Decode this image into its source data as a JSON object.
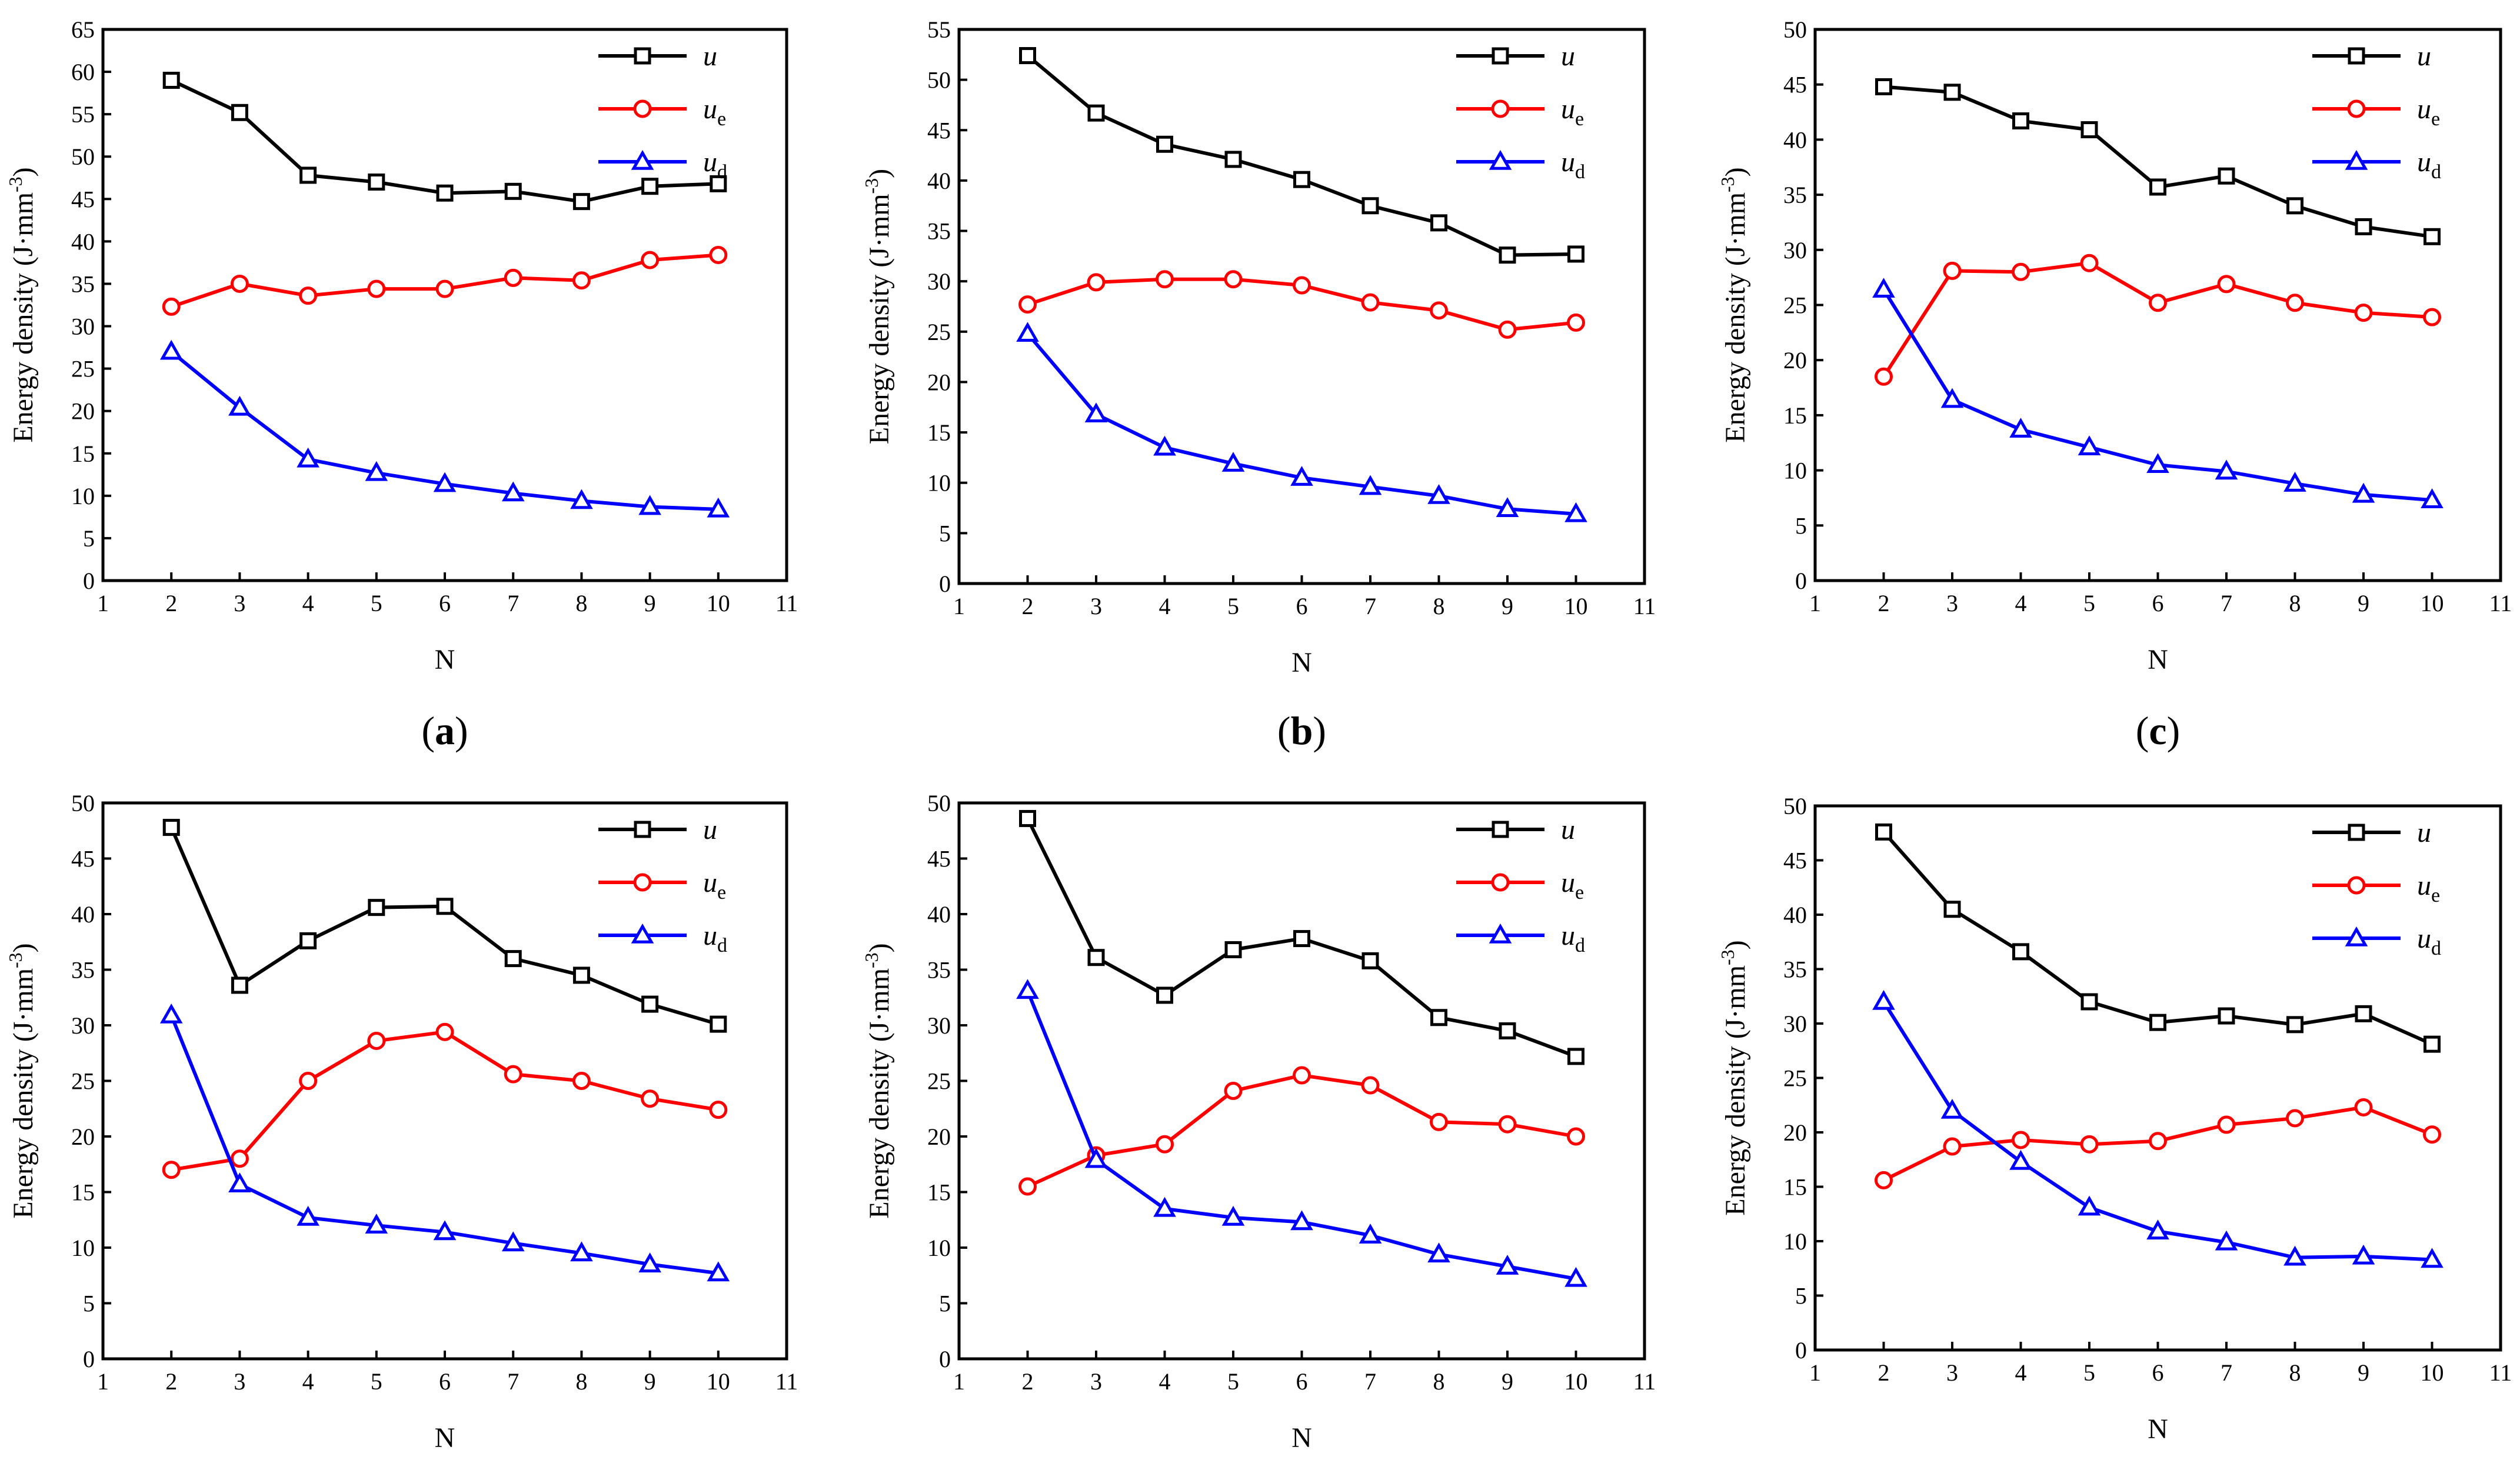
{
  "chart_data": [
    {
      "type": "line",
      "panel_label": "(a)",
      "xlabel": "N",
      "ylabel": "Energy density (J·mm",
      "ylabel_exp": "-3",
      "ylabel_close": ")",
      "xlim": [
        1,
        11
      ],
      "ylim": [
        0,
        65
      ],
      "xticks": [
        1,
        2,
        3,
        4,
        5,
        6,
        7,
        8,
        9,
        10,
        11
      ],
      "yticks": [
        0,
        5,
        10,
        15,
        20,
        25,
        30,
        35,
        40,
        45,
        50,
        55,
        60,
        65
      ],
      "grid": false,
      "legend_position": "top-right",
      "x": [
        2,
        3,
        4,
        5,
        6,
        7,
        8,
        9,
        10
      ],
      "series": [
        {
          "name": "u",
          "name_sub": "",
          "color": "#000000",
          "marker": "square",
          "values": [
            59.0,
            55.2,
            47.8,
            47.0,
            45.7,
            45.9,
            44.7,
            46.5,
            46.8
          ]
        },
        {
          "name": "u",
          "name_sub": "e",
          "color": "#ff0000",
          "marker": "circle",
          "values": [
            32.3,
            35.0,
            33.6,
            34.4,
            34.4,
            35.7,
            35.4,
            37.8,
            38.4
          ]
        },
        {
          "name": "u",
          "name_sub": "d",
          "color": "#0000ff",
          "marker": "triangle",
          "values": [
            27.0,
            20.4,
            14.3,
            12.7,
            11.4,
            10.3,
            9.4,
            8.7,
            8.4
          ]
        }
      ]
    },
    {
      "type": "line",
      "panel_label": "(b)",
      "xlabel": "N",
      "ylabel": "Energy density (J·mm",
      "ylabel_exp": "-3",
      "ylabel_close": ")",
      "xlim": [
        1,
        11
      ],
      "ylim": [
        0,
        55
      ],
      "xticks": [
        1,
        2,
        3,
        4,
        5,
        6,
        7,
        8,
        9,
        10,
        11
      ],
      "yticks": [
        0,
        5,
        10,
        15,
        20,
        25,
        30,
        35,
        40,
        45,
        50,
        55
      ],
      "grid": false,
      "legend_position": "top-right",
      "x": [
        2,
        3,
        4,
        5,
        6,
        7,
        8,
        9,
        10
      ],
      "series": [
        {
          "name": "u",
          "name_sub": "",
          "color": "#000000",
          "marker": "square",
          "values": [
            52.4,
            46.7,
            43.6,
            42.1,
            40.1,
            37.5,
            35.8,
            32.6,
            32.7
          ]
        },
        {
          "name": "u",
          "name_sub": "e",
          "color": "#ff0000",
          "marker": "circle",
          "values": [
            27.7,
            29.9,
            30.2,
            30.2,
            29.6,
            27.9,
            27.1,
            25.2,
            25.9
          ]
        },
        {
          "name": "u",
          "name_sub": "d",
          "color": "#0000ff",
          "marker": "triangle",
          "values": [
            24.8,
            16.8,
            13.5,
            11.9,
            10.5,
            9.6,
            8.7,
            7.4,
            6.9
          ]
        }
      ]
    },
    {
      "type": "line",
      "panel_label": "(c)",
      "xlabel": "N",
      "ylabel": "Energy density (J·mm",
      "ylabel_exp": "-3",
      "ylabel_close": ")",
      "xlim": [
        1,
        11
      ],
      "ylim": [
        0,
        50
      ],
      "xticks": [
        1,
        2,
        3,
        4,
        5,
        6,
        7,
        8,
        9,
        10,
        11
      ],
      "yticks": [
        0,
        5,
        10,
        15,
        20,
        25,
        30,
        35,
        40,
        45,
        50
      ],
      "grid": false,
      "legend_position": "top-right",
      "x": [
        2,
        3,
        4,
        5,
        6,
        7,
        8,
        9,
        10
      ],
      "series": [
        {
          "name": "u",
          "name_sub": "",
          "color": "#000000",
          "marker": "square",
          "values": [
            44.8,
            44.3,
            41.7,
            40.9,
            35.7,
            36.7,
            34.0,
            32.1,
            31.2
          ]
        },
        {
          "name": "u",
          "name_sub": "e",
          "color": "#ff0000",
          "marker": "circle",
          "values": [
            18.5,
            28.1,
            28.0,
            28.8,
            25.2,
            26.9,
            25.2,
            24.3,
            23.9
          ]
        },
        {
          "name": "u",
          "name_sub": "d",
          "color": "#0000ff",
          "marker": "triangle",
          "values": [
            26.4,
            16.4,
            13.7,
            12.1,
            10.5,
            9.9,
            8.8,
            7.8,
            7.3
          ]
        }
      ]
    },
    {
      "type": "line",
      "panel_label": "",
      "xlabel": "N",
      "ylabel": "Energy density (J·mm",
      "ylabel_exp": "-3",
      "ylabel_close": ")",
      "xlim": [
        1,
        11
      ],
      "ylim": [
        0,
        50
      ],
      "xticks": [
        1,
        2,
        3,
        4,
        5,
        6,
        7,
        8,
        9,
        10,
        11
      ],
      "yticks": [
        0,
        5,
        10,
        15,
        20,
        25,
        30,
        35,
        40,
        45,
        50
      ],
      "grid": false,
      "legend_position": "top-right",
      "x": [
        2,
        3,
        4,
        5,
        6,
        7,
        8,
        9,
        10
      ],
      "series": [
        {
          "name": "u",
          "name_sub": "",
          "color": "#000000",
          "marker": "square",
          "values": [
            47.8,
            33.6,
            37.6,
            40.6,
            40.7,
            36.0,
            34.5,
            31.9,
            30.1
          ]
        },
        {
          "name": "u",
          "name_sub": "e",
          "color": "#ff0000",
          "marker": "circle",
          "values": [
            17.0,
            18.0,
            25.0,
            28.6,
            29.4,
            25.6,
            25.0,
            23.4,
            22.4
          ]
        },
        {
          "name": "u",
          "name_sub": "d",
          "color": "#0000ff",
          "marker": "triangle",
          "values": [
            30.9,
            15.7,
            12.7,
            12.0,
            11.4,
            10.4,
            9.5,
            8.5,
            7.7
          ]
        }
      ]
    },
    {
      "type": "line",
      "panel_label": "",
      "xlabel": "N",
      "ylabel": "Energy density (J·mm",
      "ylabel_exp": "-3",
      "ylabel_close": ")",
      "xlim": [
        1,
        11
      ],
      "ylim": [
        0,
        50
      ],
      "xticks": [
        1,
        2,
        3,
        4,
        5,
        6,
        7,
        8,
        9,
        10,
        11
      ],
      "yticks": [
        0,
        5,
        10,
        15,
        20,
        25,
        30,
        35,
        40,
        45,
        50
      ],
      "grid": false,
      "legend_position": "top-right",
      "x": [
        2,
        3,
        4,
        5,
        6,
        7,
        8,
        9,
        10
      ],
      "series": [
        {
          "name": "u",
          "name_sub": "",
          "color": "#000000",
          "marker": "square",
          "values": [
            48.6,
            36.1,
            32.7,
            36.8,
            37.8,
            35.8,
            30.7,
            29.5,
            27.2
          ]
        },
        {
          "name": "u",
          "name_sub": "e",
          "color": "#ff0000",
          "marker": "circle",
          "values": [
            15.5,
            18.3,
            19.3,
            24.1,
            25.5,
            24.6,
            21.3,
            21.1,
            20.0
          ]
        },
        {
          "name": "u",
          "name_sub": "d",
          "color": "#0000ff",
          "marker": "triangle",
          "values": [
            33.1,
            17.9,
            13.5,
            12.7,
            12.3,
            11.1,
            9.4,
            8.3,
            7.2
          ]
        }
      ]
    },
    {
      "type": "line",
      "panel_label": "",
      "xlabel": "N",
      "ylabel": "Energy density (J·mm",
      "ylabel_exp": "-3",
      "ylabel_close": ")",
      "xlim": [
        1,
        11
      ],
      "ylim": [
        0,
        50
      ],
      "xticks": [
        1,
        2,
        3,
        4,
        5,
        6,
        7,
        8,
        9,
        10,
        11
      ],
      "yticks": [
        0,
        5,
        10,
        15,
        20,
        25,
        30,
        35,
        40,
        45,
        50
      ],
      "grid": false,
      "legend_position": "top-right",
      "x": [
        2,
        3,
        4,
        5,
        6,
        7,
        8,
        9,
        10
      ],
      "series": [
        {
          "name": "u",
          "name_sub": "",
          "color": "#000000",
          "marker": "square",
          "values": [
            47.6,
            40.5,
            36.6,
            32.0,
            30.1,
            30.7,
            29.9,
            30.9,
            28.1
          ]
        },
        {
          "name": "u",
          "name_sub": "e",
          "color": "#ff0000",
          "marker": "circle",
          "values": [
            15.6,
            18.7,
            19.3,
            18.9,
            19.2,
            20.7,
            21.3,
            22.3,
            19.8
          ]
        },
        {
          "name": "u",
          "name_sub": "d",
          "color": "#0000ff",
          "marker": "triangle",
          "values": [
            32.0,
            22.0,
            17.3,
            13.1,
            10.9,
            9.9,
            8.5,
            8.6,
            8.3
          ]
        }
      ]
    }
  ]
}
